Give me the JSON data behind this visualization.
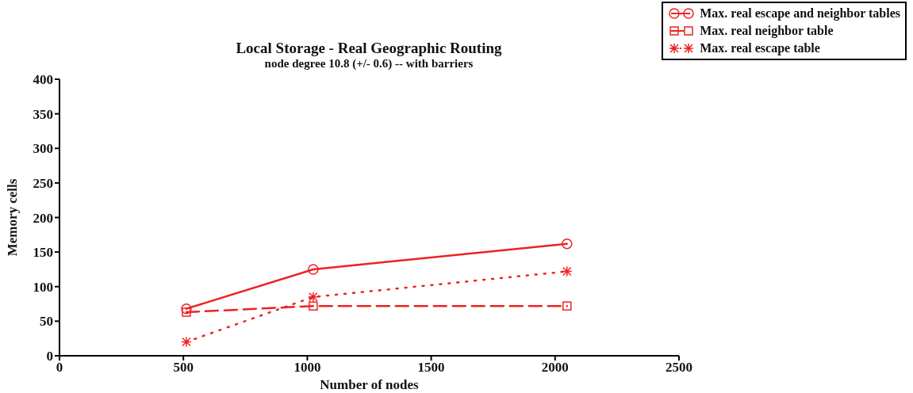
{
  "chart_data": {
    "type": "line",
    "title": "Local Storage - Real Geographic Routing",
    "subtitle": "node degree 10.8 (+/- 0.6) -- with barriers",
    "xlabel": "Number of nodes",
    "ylabel": "Memory cells",
    "x": [
      512,
      1024,
      2048
    ],
    "series": [
      {
        "name": "Max. real escape and neighbor tables",
        "color": "#ee2222",
        "values": [
          68,
          125,
          162
        ],
        "marker": "circle",
        "line_style": "solid"
      },
      {
        "name": "Max. real neighbor table",
        "color": "#ee2222",
        "values": [
          63,
          72,
          72
        ],
        "marker": "square",
        "line_style": "dashed"
      },
      {
        "name": "Max. real escape table",
        "color": "#ee2222",
        "values": [
          20,
          85,
          122
        ],
        "marker": "cross",
        "line_style": "dotted"
      }
    ],
    "xlim": [
      0,
      2500
    ],
    "xticks": [
      0,
      500,
      1000,
      1500,
      2000,
      2500
    ],
    "ylim": [
      0,
      400
    ],
    "yticks": [
      0,
      50,
      100,
      150,
      200,
      250,
      300,
      350,
      400
    ],
    "grid": false,
    "legend": "top right"
  }
}
